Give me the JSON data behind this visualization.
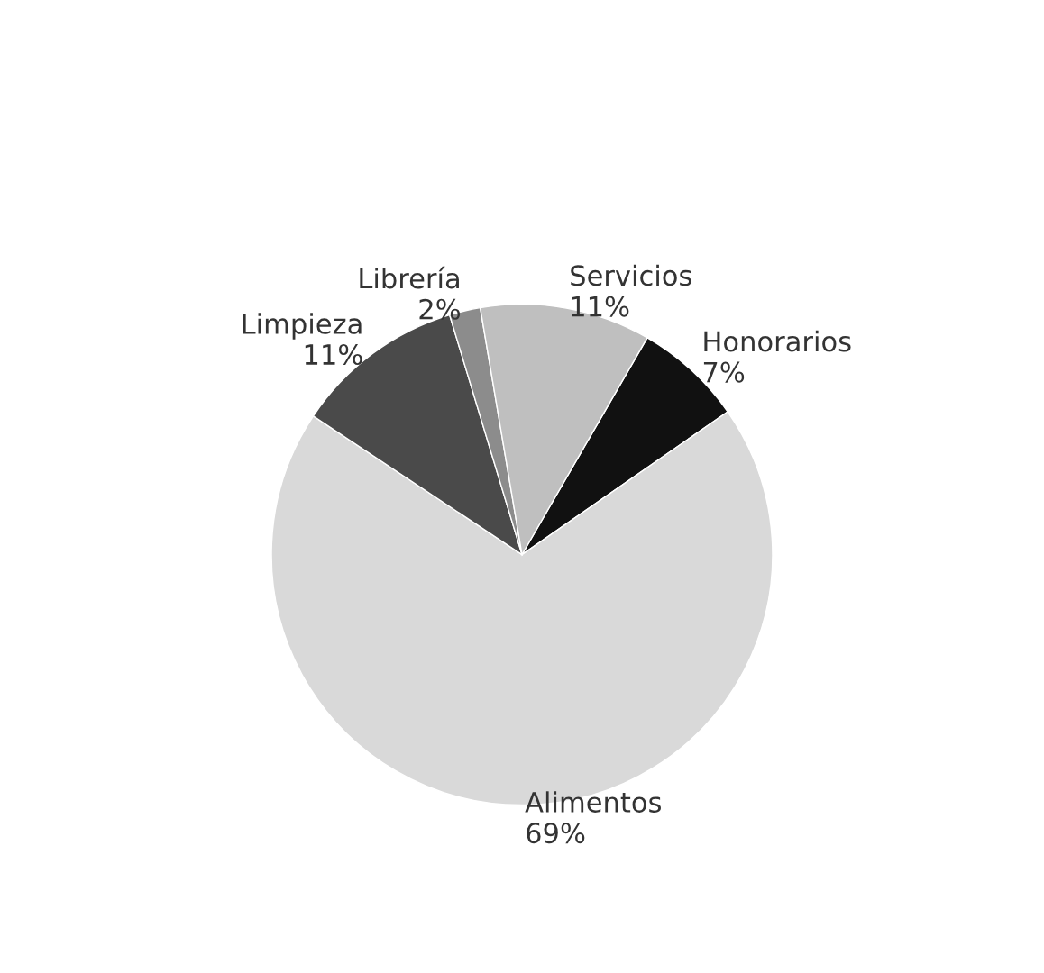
{
  "chart_data": {
    "type": "pie",
    "categories": [
      "Honorarios",
      "Alimentos",
      "Limpieza",
      "Librería",
      "Servicios"
    ],
    "values": [
      7,
      69,
      11,
      2,
      11
    ],
    "value_labels": [
      "7%",
      "69%",
      "11%",
      "2%",
      "11%"
    ],
    "colors": [
      "#111111",
      "#d9d9d9",
      "#4a4a4a",
      "#8c8c8c",
      "#bfbfbf"
    ],
    "legend": false
  }
}
